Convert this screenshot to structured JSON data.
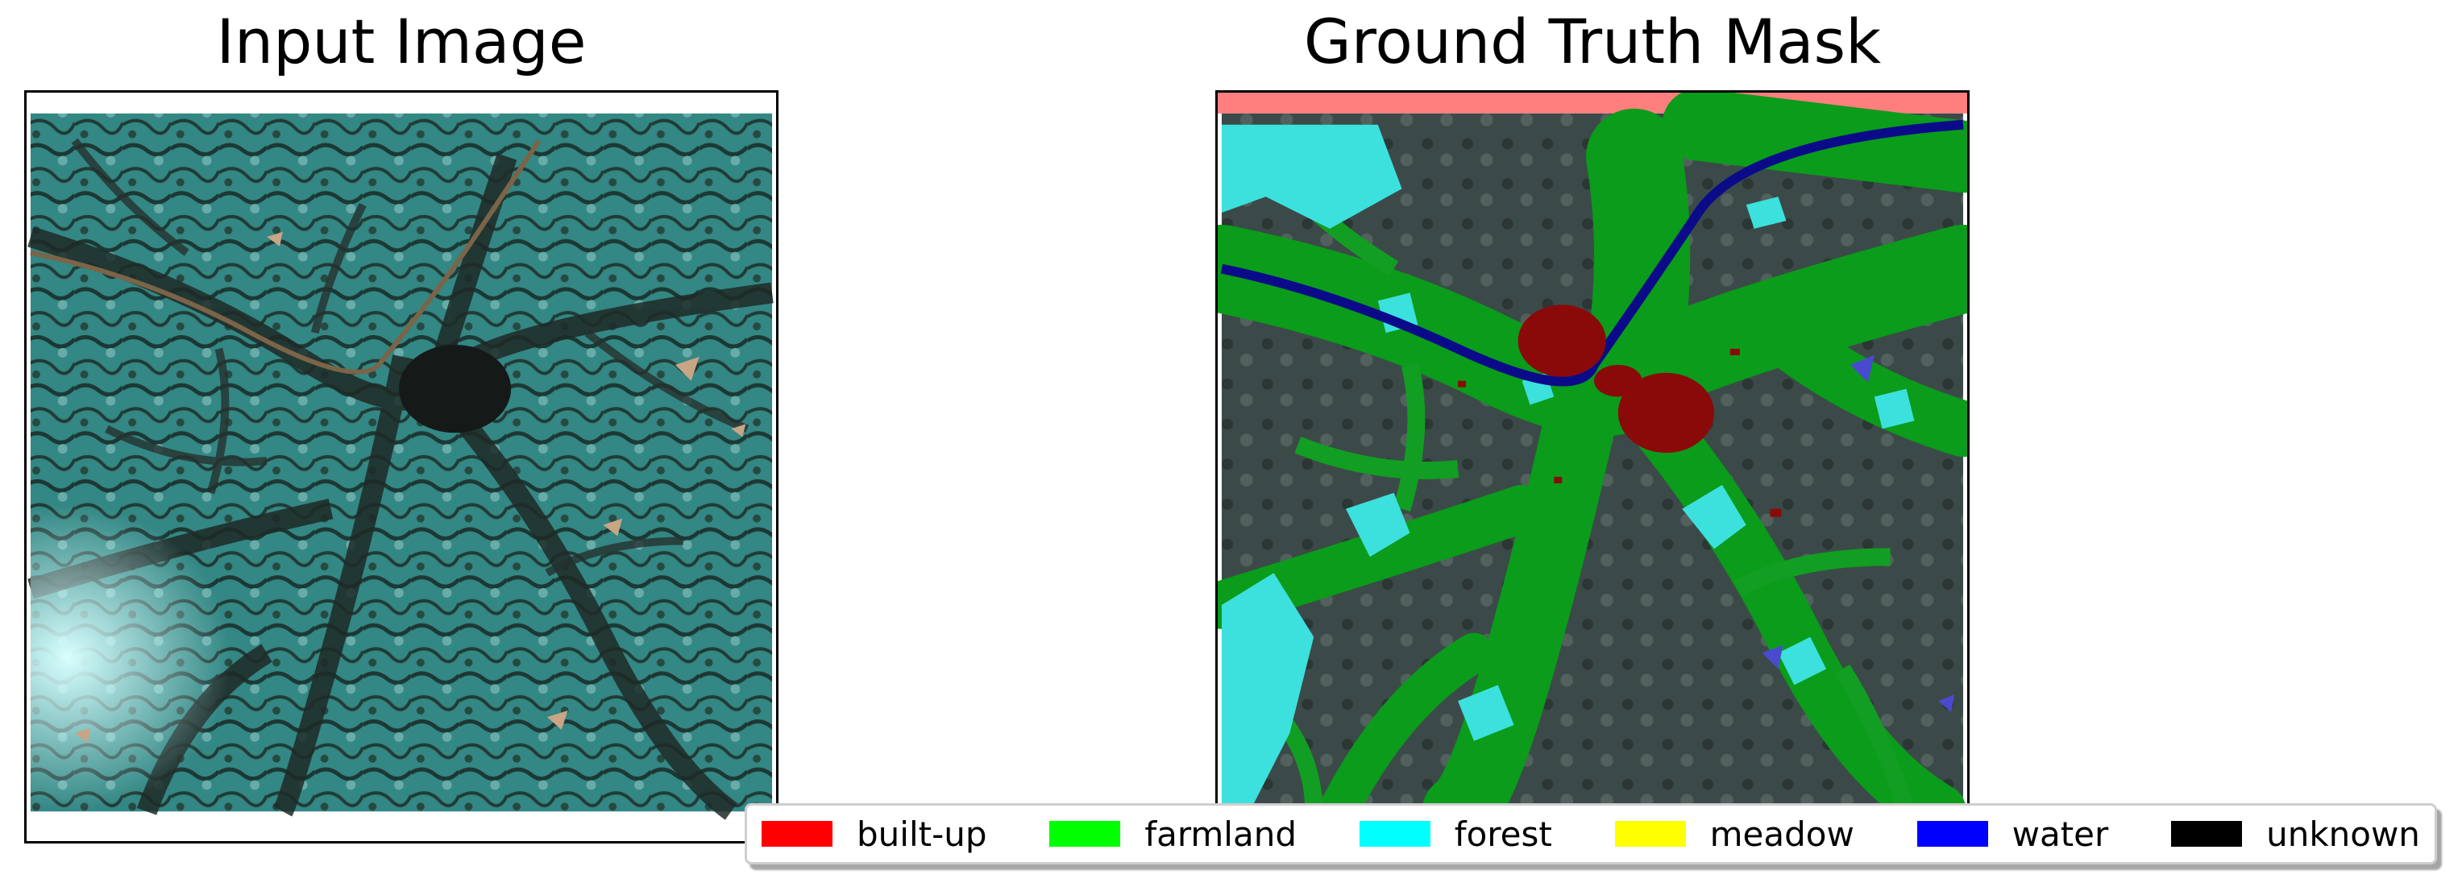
{
  "panels": {
    "left_title": "Input Image",
    "right_title": "Ground Truth Mask"
  },
  "legend": [
    {
      "label": "built-up",
      "color": "#ff0000"
    },
    {
      "label": "farmland",
      "color": "#00ff00"
    },
    {
      "label": "forest",
      "color": "#00ffff"
    },
    {
      "label": "meadow",
      "color": "#ffff00"
    },
    {
      "label": "water",
      "color": "#0000ff"
    },
    {
      "label": "unknown",
      "color": "#000000"
    }
  ]
}
